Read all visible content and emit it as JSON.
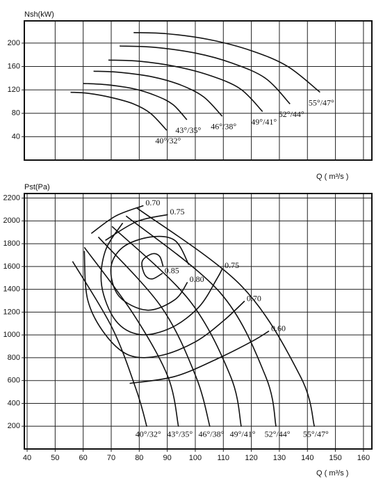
{
  "chart_data": [
    {
      "type": "line",
      "y_label": "Nsh(kW)",
      "x_label": "Q ( m³/s )",
      "xlim": [
        39,
        163
      ],
      "ylim": [
        0,
        238
      ],
      "xticks": [
        50,
        60,
        70,
        80,
        90,
        100,
        110,
        120,
        130,
        140,
        150,
        160
      ],
      "show_xtick_labels": false,
      "yticks": [
        40,
        80,
        120,
        160,
        200
      ],
      "grid": true,
      "series": [
        {
          "name": "40°/32°",
          "color": "#111111",
          "x": [
            55.5,
            62,
            70,
            78,
            84,
            89.8
          ],
          "values": [
            116,
            114,
            107,
            96,
            80,
            51
          ]
        },
        {
          "name": "43°/35°",
          "color": "#111111",
          "x": [
            60,
            68,
            78,
            86,
            92,
            97
          ],
          "values": [
            131,
            129,
            122,
            110,
            95,
            69
          ]
        },
        {
          "name": "46°/38°",
          "color": "#111111",
          "x": [
            63.7,
            73,
            85,
            95,
            103,
            109.6
          ],
          "values": [
            152,
            150,
            142,
            128,
            108,
            75
          ]
        },
        {
          "name": "49°/41°",
          "color": "#111111",
          "x": [
            69,
            80,
            93,
            105,
            116,
            124
          ],
          "values": [
            171,
            169,
            160,
            145,
            122,
            83
          ]
        },
        {
          "name": "52°/44°",
          "color": "#111111",
          "x": [
            73,
            85,
            100,
            113,
            125,
            133.8
          ],
          "values": [
            195,
            193,
            183,
            166,
            140,
            96
          ]
        },
        {
          "name": "55°/47°",
          "color": "#111111",
          "x": [
            78,
            90,
            105,
            120,
            133,
            144.5
          ],
          "values": [
            218,
            216,
            206,
            187,
            160,
            116
          ]
        }
      ]
    },
    {
      "type": "line",
      "y_label": "Pst(Pa)",
      "x_label": "Q ( m³/s )",
      "xlim": [
        39,
        163
      ],
      "ylim": [
        0,
        2240
      ],
      "xticks": [
        40,
        50,
        60,
        70,
        80,
        90,
        100,
        110,
        120,
        130,
        140,
        150,
        160
      ],
      "show_xtick_labels": true,
      "yticks": [
        200,
        400,
        600,
        800,
        1000,
        1200,
        1400,
        1600,
        1800,
        2000,
        2200
      ],
      "grid": true,
      "series": [
        {
          "name": "40°/32°",
          "color": "#111111",
          "x": [
            56.2,
            70.3,
            79,
            82.7
          ],
          "values": [
            1645,
            1064,
            514,
            196
          ]
        },
        {
          "name": "43°/35°",
          "color": "#111111",
          "x": [
            60.4,
            77.8,
            90.2,
            94
          ],
          "values": [
            1768,
            1187,
            636,
            196
          ]
        },
        {
          "name": "46°/38°",
          "color": "#111111",
          "x": [
            65.4,
            87.8,
            100.2,
            105.2
          ],
          "values": [
            1859,
            1248,
            636,
            196
          ]
        },
        {
          "name": "49°/41°",
          "color": "#111111",
          "x": [
            70.3,
            97.7,
            112.6,
            116.4
          ],
          "values": [
            1951,
            1309,
            636,
            196
          ]
        },
        {
          "name": "52°/44°",
          "color": "#111111",
          "x": [
            75.3,
            108.9,
            125.1,
            128.8
          ],
          "values": [
            2043,
            1370,
            636,
            196
          ]
        },
        {
          "name": "55°/47°",
          "color": "#111111",
          "x": [
            79,
            116.4,
            137.5,
            142.5
          ],
          "values": [
            2116,
            1431,
            636,
            196
          ]
        }
      ],
      "contours": [
        {
          "label": "0.70",
          "x": [
            62.9,
            71.6,
            81.5
          ],
          "y": [
            1890,
            2043,
            2134
          ]
        },
        {
          "label": "0.75",
          "x": [
            67.9,
            79.1,
            90.2
          ],
          "y": [
            1829,
            1994,
            2055
          ]
        },
        {
          "label": "0.85",
          "x": [
            88.5,
            87.3,
            84.8,
            81.5,
            81,
            82.3,
            84.8,
            88.3
          ],
          "y": [
            1602,
            1688,
            1712,
            1664,
            1602,
            1517,
            1492,
            1541
          ]
        },
        {
          "label": "0.80",
          "x": [
            97.7,
            92.7,
            84,
            74.1,
            69.9,
            72.8,
            82.8,
            92.7,
            97.2
          ],
          "y": [
            1615,
            1829,
            1859,
            1768,
            1584,
            1339,
            1217,
            1309,
            1462
          ]
        },
        {
          "label": "0.75",
          "x": [
            74.1,
            67.9,
            66.6,
            71.6,
            80.3,
            91.5,
            101.4,
            107.7,
            109.7
          ],
          "y": [
            1982,
            1737,
            1431,
            1125,
            1003,
            1064,
            1248,
            1492,
            1584
          ]
        },
        {
          "label": "0.70",
          "x": [
            60.4,
            61.6,
            67.9,
            76.6,
            87.8,
            100.2,
            110.1,
            117.6
          ],
          "y": [
            1737,
            1309,
            1003,
            820,
            820,
            942,
            1125,
            1297
          ]
        },
        {
          "label": "0.60",
          "x": [
            76.6,
            92.7,
            107.7,
            120.1,
            126.3
          ],
          "y": [
            575,
            636,
            789,
            942,
            1034
          ]
        }
      ]
    }
  ]
}
